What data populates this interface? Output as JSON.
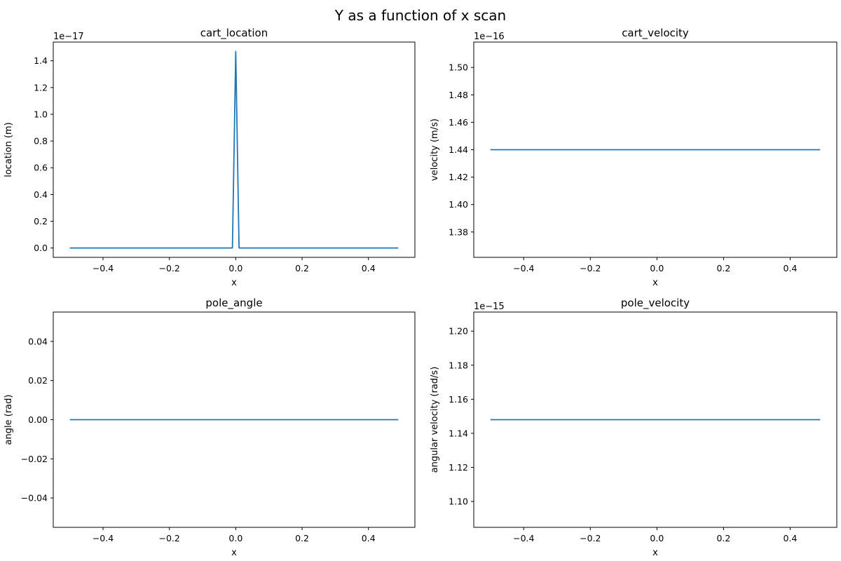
{
  "figure": {
    "title": "Y as a function of x scan"
  },
  "chart_data": [
    {
      "type": "line",
      "title": "cart_location",
      "xlabel": "x",
      "ylabel": "location (m)",
      "offset_text": "1e−17",
      "xlim": [
        -0.55,
        0.54
      ],
      "ylim": [
        -0.07,
        1.54
      ],
      "xticks": [
        -0.4,
        -0.2,
        0.0,
        0.2,
        0.4
      ],
      "xtick_labels": [
        "−0.4",
        "−0.2",
        "0.0",
        "0.2",
        "0.4"
      ],
      "yticks": [
        0.0,
        0.2,
        0.4,
        0.6,
        0.8,
        1.0,
        1.2,
        1.4
      ],
      "ytick_labels": [
        "0.0",
        "0.2",
        "0.4",
        "0.6",
        "0.8",
        "1.0",
        "1.2",
        "1.4"
      ],
      "x": [
        -0.5,
        -0.01,
        0.0,
        0.01,
        0.49
      ],
      "series": [
        {
          "values": [
            0.0,
            0.0,
            1.47,
            0.0,
            0.0
          ]
        }
      ]
    },
    {
      "type": "line",
      "title": "cart_velocity",
      "xlabel": "x",
      "ylabel": "velocity (m/s)",
      "offset_text": "1e−16",
      "xlim": [
        -0.55,
        0.54
      ],
      "ylim": [
        1.3615,
        1.5185
      ],
      "xticks": [
        -0.4,
        -0.2,
        0.0,
        0.2,
        0.4
      ],
      "xtick_labels": [
        "−0.4",
        "−0.2",
        "0.0",
        "0.2",
        "0.4"
      ],
      "yticks": [
        1.38,
        1.4,
        1.42,
        1.44,
        1.46,
        1.48,
        1.5
      ],
      "ytick_labels": [
        "1.38",
        "1.40",
        "1.42",
        "1.44",
        "1.46",
        "1.48",
        "1.50"
      ],
      "x": [
        -0.5,
        0.49
      ],
      "series": [
        {
          "values": [
            1.44,
            1.44
          ]
        }
      ]
    },
    {
      "type": "line",
      "title": "pole_angle",
      "xlabel": "x",
      "ylabel": "angle (rad)",
      "offset_text": "",
      "xlim": [
        -0.55,
        0.54
      ],
      "ylim": [
        -0.055,
        0.055
      ],
      "xticks": [
        -0.4,
        -0.2,
        0.0,
        0.2,
        0.4
      ],
      "xtick_labels": [
        "−0.4",
        "−0.2",
        "0.0",
        "0.2",
        "0.4"
      ],
      "yticks": [
        -0.04,
        -0.02,
        0.0,
        0.02,
        0.04
      ],
      "ytick_labels": [
        "−0.04",
        "−0.02",
        "0.00",
        "0.02",
        "0.04"
      ],
      "x": [
        -0.5,
        0.49
      ],
      "series": [
        {
          "values": [
            0.0,
            0.0
          ]
        }
      ]
    },
    {
      "type": "line",
      "title": "pole_velocity",
      "xlabel": "x",
      "ylabel": "angular velocity (rad/s)",
      "offset_text": "1e−15",
      "xlim": [
        -0.55,
        0.54
      ],
      "ylim": [
        1.0848,
        1.2112
      ],
      "xticks": [
        -0.4,
        -0.2,
        0.0,
        0.2,
        0.4
      ],
      "xtick_labels": [
        "−0.4",
        "−0.2",
        "0.0",
        "0.2",
        "0.4"
      ],
      "yticks": [
        1.1,
        1.12,
        1.14,
        1.16,
        1.18,
        1.2
      ],
      "ytick_labels": [
        "1.10",
        "1.12",
        "1.14",
        "1.16",
        "1.18",
        "1.20"
      ],
      "x": [
        -0.5,
        0.49
      ],
      "series": [
        {
          "values": [
            1.148,
            1.148
          ]
        }
      ]
    }
  ]
}
